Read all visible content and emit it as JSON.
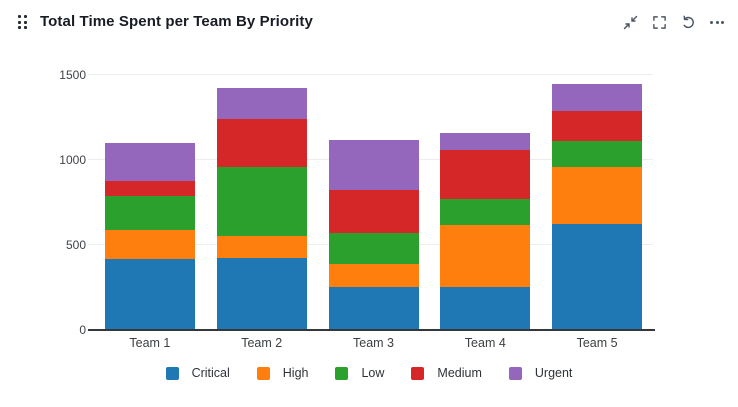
{
  "header": {
    "title": "Total Time Spent per Team By Priority",
    "drag_handle_icon": "six-dot-drag-handle",
    "actions": [
      {
        "label": "collapse",
        "icon": "shrink-arrows-icon"
      },
      {
        "label": "fullscreen",
        "icon": "corner-brackets-icon"
      },
      {
        "label": "refresh",
        "icon": "circular-arrow-icon"
      },
      {
        "label": "more-options",
        "icon": "ellipsis-icon"
      }
    ]
  },
  "chart_data": {
    "type": "bar",
    "stacked": true,
    "title": "Total Time Spent per Team By Priority",
    "categories": [
      "Team 1",
      "Team 2",
      "Team 3",
      "Team 4",
      "Team 5"
    ],
    "series": [
      {
        "name": "Critical",
        "color": "#1f77b4",
        "values": [
          410,
          420,
          245,
          245,
          620
        ]
      },
      {
        "name": "High",
        "color": "#ff7f0e",
        "values": [
          175,
          125,
          140,
          365,
          335
        ]
      },
      {
        "name": "Low",
        "color": "#2ca02c",
        "values": [
          195,
          410,
          180,
          155,
          150
        ]
      },
      {
        "name": "Medium",
        "color": "#d62728",
        "values": [
          90,
          280,
          255,
          285,
          180
        ]
      },
      {
        "name": "Urgent",
        "color": "#9467bd",
        "values": [
          225,
          180,
          290,
          100,
          155
        ]
      }
    ],
    "xlabel": "",
    "ylabel": "",
    "yticks": [
      0,
      500,
      1000,
      1500
    ],
    "ylim": [
      0,
      1500
    ],
    "grid": true,
    "gridline_color": "#ebedf0",
    "axis_color": "#34373c",
    "legend_position": "bottom"
  }
}
